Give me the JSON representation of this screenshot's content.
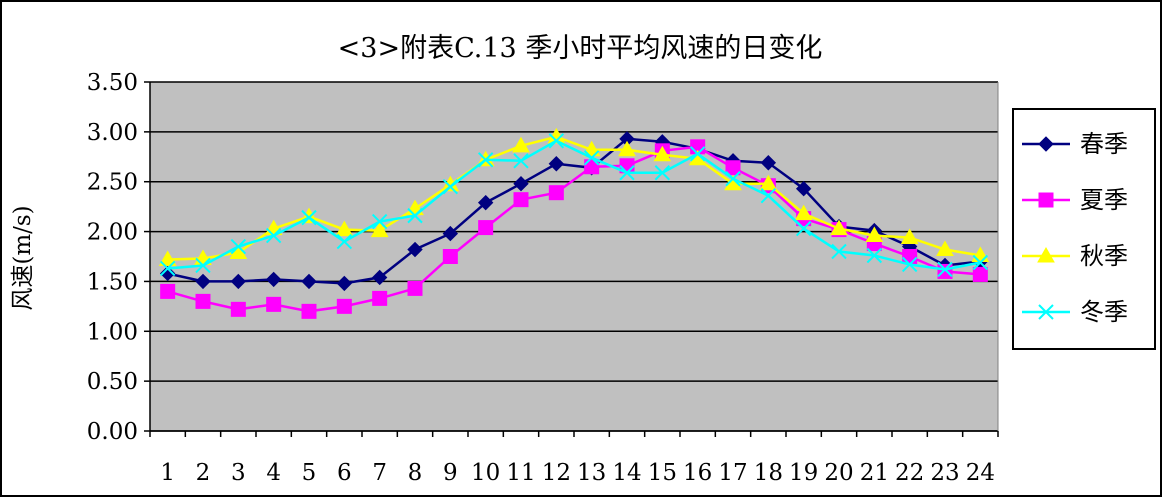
{
  "chart_data": {
    "type": "line",
    "title": "<3>附表C.13 季小时平均风速的日变化",
    "xlabel": "",
    "ylabel": "风速(m/s)",
    "x": [
      "1",
      "2",
      "3",
      "4",
      "5",
      "6",
      "7",
      "8",
      "9",
      "10",
      "11",
      "12",
      "13",
      "14",
      "15",
      "16",
      "17",
      "18",
      "19",
      "20",
      "21",
      "22",
      "23",
      "24"
    ],
    "ylim": [
      0,
      3.5
    ],
    "yticks": [
      "0.00",
      "0.50",
      "1.00",
      "1.50",
      "2.00",
      "2.50",
      "3.00",
      "3.50"
    ],
    "grid": true,
    "legend_position": "right",
    "series": [
      {
        "name": "春季",
        "color": "#000080",
        "marker": "diamond",
        "values": [
          1.58,
          1.5,
          1.5,
          1.52,
          1.5,
          1.48,
          1.54,
          1.82,
          1.98,
          2.29,
          2.48,
          2.68,
          2.64,
          2.93,
          2.9,
          2.83,
          2.71,
          2.69,
          2.43,
          2.05,
          2.01,
          1.85,
          1.66,
          1.7
        ]
      },
      {
        "name": "夏季",
        "color": "#ff00ff",
        "marker": "square",
        "values": [
          1.4,
          1.3,
          1.22,
          1.27,
          1.2,
          1.25,
          1.33,
          1.43,
          1.75,
          2.04,
          2.32,
          2.39,
          2.65,
          2.66,
          2.81,
          2.85,
          2.64,
          2.46,
          2.13,
          2.02,
          1.88,
          1.75,
          1.6,
          1.57
        ]
      },
      {
        "name": "秋季",
        "color": "#ffff00",
        "marker": "triangle",
        "values": [
          1.72,
          1.73,
          1.79,
          2.03,
          2.15,
          2.02,
          2.01,
          2.23,
          2.47,
          2.72,
          2.86,
          2.95,
          2.82,
          2.82,
          2.77,
          2.73,
          2.48,
          2.48,
          2.18,
          2.03,
          1.96,
          1.94,
          1.82,
          1.76
        ]
      },
      {
        "name": "冬季",
        "color": "#00ffff",
        "marker": "x",
        "values": [
          1.63,
          1.66,
          1.85,
          1.96,
          2.14,
          1.9,
          2.1,
          2.16,
          2.45,
          2.72,
          2.71,
          2.91,
          2.74,
          2.59,
          2.59,
          2.78,
          2.53,
          2.36,
          2.03,
          1.8,
          1.76,
          1.67,
          1.62,
          1.69
        ]
      }
    ]
  }
}
